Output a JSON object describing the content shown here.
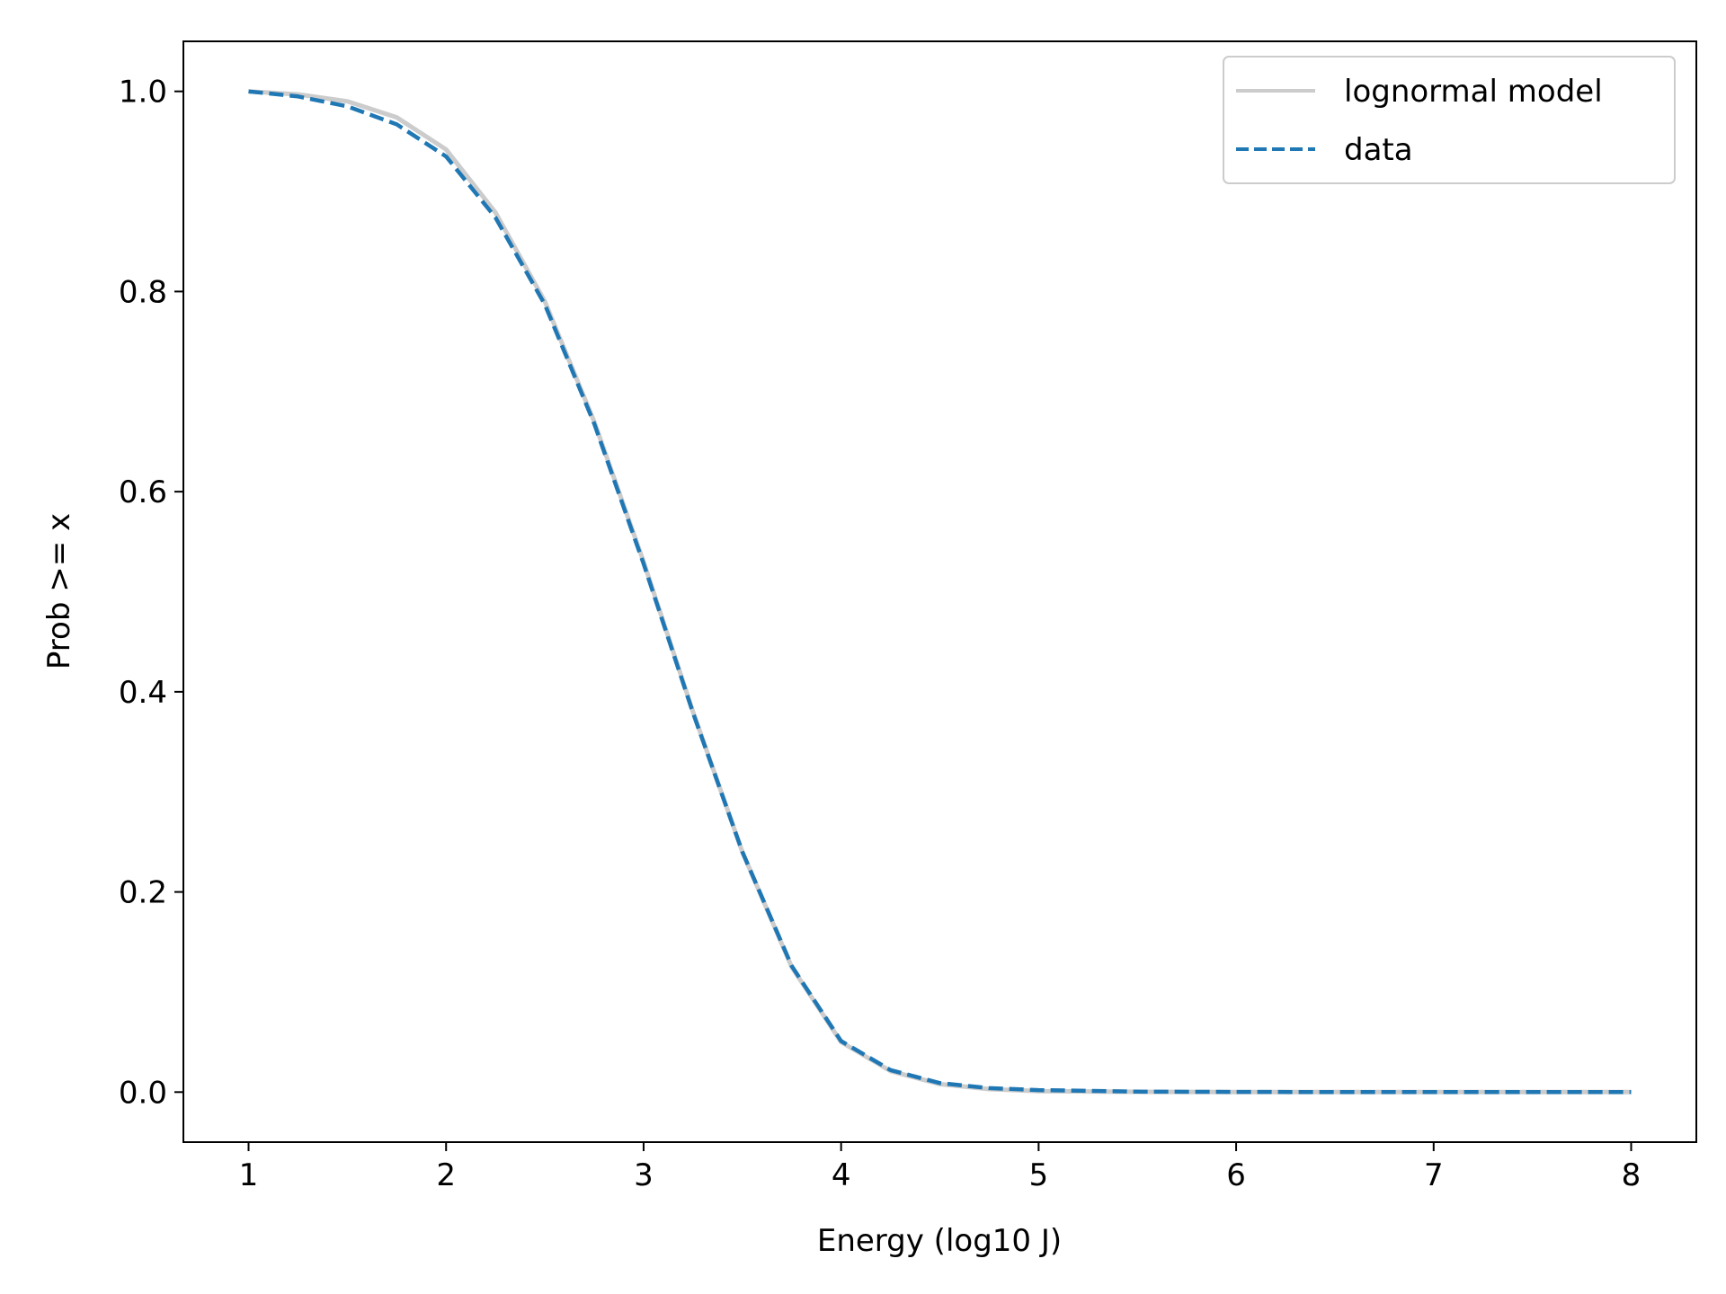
{
  "chart_data": {
    "type": "line",
    "xlabel": "Energy (log10 J)",
    "ylabel": "Prob >= x",
    "xlim": [
      0.67,
      8.33
    ],
    "ylim": [
      -0.05,
      1.05
    ],
    "xticks": [
      1,
      2,
      3,
      4,
      5,
      6,
      7,
      8
    ],
    "yticks": [
      0.0,
      0.2,
      0.4,
      0.6,
      0.8,
      1.0
    ],
    "xtick_labels": [
      "1",
      "2",
      "3",
      "4",
      "5",
      "6",
      "7",
      "8"
    ],
    "ytick_labels": [
      "0.0",
      "0.2",
      "0.4",
      "0.6",
      "0.8",
      "1.0"
    ],
    "legend": "top-right",
    "grid": false,
    "series": [
      {
        "name": "lognormal model",
        "style": "solid",
        "color": "#cccccc",
        "x": [
          1.0,
          1.25,
          1.5,
          1.75,
          2.0,
          2.25,
          2.5,
          2.75,
          3.0,
          3.25,
          3.5,
          3.75,
          4.0,
          4.25,
          4.5,
          4.75,
          5.0,
          5.5,
          6.0,
          6.5,
          7.0,
          7.5,
          8.0
        ],
        "y": [
          1.0,
          0.997,
          0.99,
          0.974,
          0.942,
          0.879,
          0.79,
          0.67,
          0.53,
          0.38,
          0.24,
          0.125,
          0.05,
          0.021,
          0.008,
          0.003,
          0.001,
          0.0003,
          0.0001,
          0.0,
          0.0,
          0.0,
          0.0
        ]
      },
      {
        "name": "data",
        "style": "dashed",
        "color": "#1f77b4",
        "x": [
          1.0,
          1.25,
          1.5,
          1.75,
          2.0,
          2.25,
          2.5,
          2.75,
          3.0,
          3.25,
          3.5,
          3.75,
          4.0,
          4.25,
          4.5,
          4.75,
          5.0,
          5.5,
          6.0,
          6.5,
          7.0,
          7.5,
          8.0
        ],
        "y": [
          1.0,
          0.995,
          0.985,
          0.967,
          0.935,
          0.874,
          0.787,
          0.668,
          0.528,
          0.379,
          0.24,
          0.126,
          0.051,
          0.022,
          0.009,
          0.004,
          0.002,
          0.0005,
          0.0002,
          0.0,
          0.0,
          0.0,
          0.0
        ]
      }
    ]
  }
}
